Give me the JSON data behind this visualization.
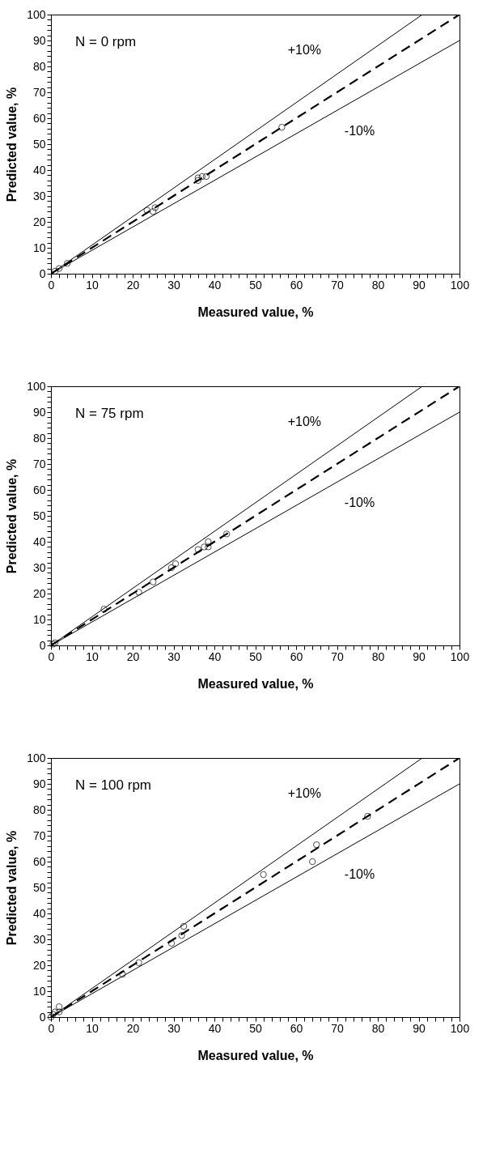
{
  "chart_data": [
    {
      "type": "scatter",
      "xlabel": "Measured value, %",
      "ylabel": "Predicted value, %",
      "annotations": [
        "N = 0 rpm"
      ],
      "xlim": [
        0,
        100
      ],
      "ylim": [
        0,
        100
      ],
      "xticks": [
        0,
        {
          "value": 2,
          "label": null
        },
        {
          "value": 4,
          "label": null
        },
        {
          "value": 6,
          "label": null
        },
        {
          "value": 8,
          "label": null
        },
        10,
        {
          "value": 12,
          "label": null
        },
        {
          "value": 14,
          "label": null
        },
        {
          "value": 16,
          "label": null
        },
        {
          "value": 18,
          "label": null
        },
        20,
        {
          "value": 22,
          "label": null
        },
        {
          "value": 24,
          "label": null
        },
        {
          "value": 26,
          "label": null
        },
        {
          "value": 28,
          "label": null
        },
        30,
        {
          "value": 32,
          "label": null
        },
        {
          "value": 34,
          "label": null
        },
        {
          "value": 36,
          "label": null
        },
        {
          "value": 38,
          "label": null
        },
        40,
        {
          "value": 42,
          "label": null
        },
        {
          "value": 44,
          "label": null
        },
        {
          "value": 46,
          "label": null
        },
        {
          "value": 48,
          "label": null
        },
        50,
        {
          "value": 52,
          "label": null
        },
        {
          "value": 54,
          "label": null
        },
        {
          "value": 56,
          "label": null
        },
        {
          "value": 58,
          "label": null
        },
        60,
        {
          "value": 62,
          "label": null
        },
        {
          "value": 64,
          "label": null
        },
        {
          "value": 66,
          "label": null
        },
        {
          "value": 68,
          "label": null
        },
        70,
        {
          "value": 72,
          "label": null
        },
        {
          "value": 74,
          "label": null
        },
        {
          "value": 76,
          "label": null
        },
        {
          "value": 78,
          "label": null
        },
        80,
        {
          "value": 82,
          "label": null
        },
        {
          "value": 84,
          "label": null
        },
        {
          "value": 86,
          "label": null
        },
        {
          "value": 88,
          "label": null
        },
        90,
        {
          "value": 92,
          "label": null
        },
        {
          "value": 94,
          "label": null
        },
        {
          "value": 96,
          "label": null
        },
        {
          "value": 98,
          "label": null
        },
        100
      ],
      "yticks": [
        0,
        {
          "value": 2,
          "label": null
        },
        {
          "value": 4,
          "label": null
        },
        {
          "value": 6,
          "label": null
        },
        {
          "value": 8,
          "label": null
        },
        10,
        {
          "value": 12,
          "label": null
        },
        {
          "value": 14,
          "label": null
        },
        {
          "value": 16,
          "label": null
        },
        {
          "value": 18,
          "label": null
        },
        20,
        {
          "value": 22,
          "label": null
        },
        {
          "value": 24,
          "label": null
        },
        {
          "value": 26,
          "label": null
        },
        {
          "value": 28,
          "label": null
        },
        30,
        {
          "value": 32,
          "label": null
        },
        {
          "value": 34,
          "label": null
        },
        {
          "value": 36,
          "label": null
        },
        {
          "value": 38,
          "label": null
        },
        40,
        {
          "value": 42,
          "label": null
        },
        {
          "value": 44,
          "label": null
        },
        {
          "value": 46,
          "label": null
        },
        {
          "value": 48,
          "label": null
        },
        50,
        {
          "value": 52,
          "label": null
        },
        {
          "value": 54,
          "label": null
        },
        {
          "value": 56,
          "label": null
        },
        {
          "value": 58,
          "label": null
        },
        60,
        {
          "value": 62,
          "label": null
        },
        {
          "value": 64,
          "label": null
        },
        {
          "value": 66,
          "label": null
        },
        {
          "value": 68,
          "label": null
        },
        70,
        {
          "value": 72,
          "label": null
        },
        {
          "value": 74,
          "label": null
        },
        {
          "value": 76,
          "label": null
        },
        {
          "value": 78,
          "label": null
        },
        80,
        {
          "value": 82,
          "label": null
        },
        {
          "value": 84,
          "label": null
        },
        {
          "value": 86,
          "label": null
        },
        {
          "value": 88,
          "label": null
        },
        90,
        {
          "value": 92,
          "label": null
        },
        {
          "value": 94,
          "label": null
        },
        {
          "value": 96,
          "label": null
        },
        {
          "value": 98,
          "label": null
        },
        100
      ],
      "series": [
        {
          "type": "line",
          "name": "+10%",
          "color": "#000000",
          "line_style": "solid",
          "x": [
            0,
            90.9
          ],
          "values": [
            0,
            100
          ]
        },
        {
          "type": "line",
          "name": "-10%",
          "color": "#000000",
          "line_style": "solid",
          "x": [
            0,
            100
          ],
          "values": [
            0,
            90
          ]
        },
        {
          "type": "line",
          "color": "#000000",
          "line_style": "dashed",
          "x": [
            0,
            100
          ],
          "values": [
            0,
            100
          ]
        },
        {
          "type": "scatter",
          "color": "#000000",
          "marker": "circle",
          "x": [
            1,
            2,
            4,
            23.5,
            25,
            25.5,
            36,
            36,
            37,
            38,
            56.5
          ],
          "values": [
            1,
            2,
            4,
            24.5,
            24,
            25.5,
            37,
            36,
            37.5,
            37.5,
            56.5
          ]
        }
      ]
    },
    {
      "type": "scatter",
      "xlabel": "Measured value, %",
      "ylabel": "Predicted value, %",
      "annotations": [
        "N = 75 rpm"
      ],
      "xlim": [
        0,
        100
      ],
      "ylim": [
        0,
        100
      ],
      "xticks": [
        0,
        {
          "value": 2,
          "label": null
        },
        {
          "value": 4,
          "label": null
        },
        {
          "value": 6,
          "label": null
        },
        {
          "value": 8,
          "label": null
        },
        10,
        {
          "value": 12,
          "label": null
        },
        {
          "value": 14,
          "label": null
        },
        {
          "value": 16,
          "label": null
        },
        {
          "value": 18,
          "label": null
        },
        20,
        {
          "value": 22,
          "label": null
        },
        {
          "value": 24,
          "label": null
        },
        {
          "value": 26,
          "label": null
        },
        {
          "value": 28,
          "label": null
        },
        30,
        {
          "value": 32,
          "label": null
        },
        {
          "value": 34,
          "label": null
        },
        {
          "value": 36,
          "label": null
        },
        {
          "value": 38,
          "label": null
        },
        40,
        {
          "value": 42,
          "label": null
        },
        {
          "value": 44,
          "label": null
        },
        {
          "value": 46,
          "label": null
        },
        {
          "value": 48,
          "label": null
        },
        50,
        {
          "value": 52,
          "label": null
        },
        {
          "value": 54,
          "label": null
        },
        {
          "value": 56,
          "label": null
        },
        {
          "value": 58,
          "label": null
        },
        60,
        {
          "value": 62,
          "label": null
        },
        {
          "value": 64,
          "label": null
        },
        {
          "value": 66,
          "label": null
        },
        {
          "value": 68,
          "label": null
        },
        70,
        {
          "value": 72,
          "label": null
        },
        {
          "value": 74,
          "label": null
        },
        {
          "value": 76,
          "label": null
        },
        {
          "value": 78,
          "label": null
        },
        80,
        {
          "value": 82,
          "label": null
        },
        {
          "value": 84,
          "label": null
        },
        {
          "value": 86,
          "label": null
        },
        {
          "value": 88,
          "label": null
        },
        90,
        {
          "value": 92,
          "label": null
        },
        {
          "value": 94,
          "label": null
        },
        {
          "value": 96,
          "label": null
        },
        {
          "value": 98,
          "label": null
        },
        100
      ],
      "yticks": [
        0,
        {
          "value": 2,
          "label": null
        },
        {
          "value": 4,
          "label": null
        },
        {
          "value": 6,
          "label": null
        },
        {
          "value": 8,
          "label": null
        },
        10,
        {
          "value": 12,
          "label": null
        },
        {
          "value": 14,
          "label": null
        },
        {
          "value": 16,
          "label": null
        },
        {
          "value": 18,
          "label": null
        },
        20,
        {
          "value": 22,
          "label": null
        },
        {
          "value": 24,
          "label": null
        },
        {
          "value": 26,
          "label": null
        },
        {
          "value": 28,
          "label": null
        },
        30,
        {
          "value": 32,
          "label": null
        },
        {
          "value": 34,
          "label": null
        },
        {
          "value": 36,
          "label": null
        },
        {
          "value": 38,
          "label": null
        },
        40,
        {
          "value": 42,
          "label": null
        },
        {
          "value": 44,
          "label": null
        },
        {
          "value": 46,
          "label": null
        },
        {
          "value": 48,
          "label": null
        },
        50,
        {
          "value": 52,
          "label": null
        },
        {
          "value": 54,
          "label": null
        },
        {
          "value": 56,
          "label": null
        },
        {
          "value": 58,
          "label": null
        },
        60,
        {
          "value": 62,
          "label": null
        },
        {
          "value": 64,
          "label": null
        },
        {
          "value": 66,
          "label": null
        },
        {
          "value": 68,
          "label": null
        },
        70,
        {
          "value": 72,
          "label": null
        },
        {
          "value": 74,
          "label": null
        },
        {
          "value": 76,
          "label": null
        },
        {
          "value": 78,
          "label": null
        },
        80,
        {
          "value": 82,
          "label": null
        },
        {
          "value": 84,
          "label": null
        },
        {
          "value": 86,
          "label": null
        },
        {
          "value": 88,
          "label": null
        },
        90,
        {
          "value": 92,
          "label": null
        },
        {
          "value": 94,
          "label": null
        },
        {
          "value": 96,
          "label": null
        },
        {
          "value": 98,
          "label": null
        },
        100
      ],
      "series": [
        {
          "type": "line",
          "name": "+10%",
          "color": "#000000",
          "line_style": "solid",
          "x": [
            0,
            90.9
          ],
          "values": [
            0,
            100
          ]
        },
        {
          "type": "line",
          "name": "-10%",
          "color": "#000000",
          "line_style": "solid",
          "x": [
            0,
            100
          ],
          "values": [
            0,
            90
          ]
        },
        {
          "type": "line",
          "color": "#000000",
          "line_style": "dashed",
          "x": [
            0,
            100
          ],
          "values": [
            0,
            100
          ]
        },
        {
          "type": "scatter",
          "color": "#000000",
          "marker": "circle",
          "x": [
            0.5,
            1,
            13,
            21.5,
            25,
            29.5,
            30.5,
            36,
            37.5,
            38.5,
            38.5,
            43
          ],
          "values": [
            0.5,
            1,
            14,
            20.5,
            24.5,
            30,
            31.5,
            37,
            38,
            40,
            38,
            43
          ]
        }
      ]
    },
    {
      "type": "scatter",
      "xlabel": "Measured value, %",
      "ylabel": "Predicted value, %",
      "annotations": [
        "N = 100 rpm"
      ],
      "xlim": [
        0,
        100
      ],
      "ylim": [
        0,
        100
      ],
      "xticks": [
        0,
        {
          "value": 2,
          "label": null
        },
        {
          "value": 4,
          "label": null
        },
        {
          "value": 6,
          "label": null
        },
        {
          "value": 8,
          "label": null
        },
        10,
        {
          "value": 12,
          "label": null
        },
        {
          "value": 14,
          "label": null
        },
        {
          "value": 16,
          "label": null
        },
        {
          "value": 18,
          "label": null
        },
        20,
        {
          "value": 22,
          "label": null
        },
        {
          "value": 24,
          "label": null
        },
        {
          "value": 26,
          "label": null
        },
        {
          "value": 28,
          "label": null
        },
        30,
        {
          "value": 32,
          "label": null
        },
        {
          "value": 34,
          "label": null
        },
        {
          "value": 36,
          "label": null
        },
        {
          "value": 38,
          "label": null
        },
        40,
        {
          "value": 42,
          "label": null
        },
        {
          "value": 44,
          "label": null
        },
        {
          "value": 46,
          "label": null
        },
        {
          "value": 48,
          "label": null
        },
        50,
        {
          "value": 52,
          "label": null
        },
        {
          "value": 54,
          "label": null
        },
        {
          "value": 56,
          "label": null
        },
        {
          "value": 58,
          "label": null
        },
        60,
        {
          "value": 62,
          "label": null
        },
        {
          "value": 64,
          "label": null
        },
        {
          "value": 66,
          "label": null
        },
        {
          "value": 68,
          "label": null
        },
        70,
        {
          "value": 72,
          "label": null
        },
        {
          "value": 74,
          "label": null
        },
        {
          "value": 76,
          "label": null
        },
        {
          "value": 78,
          "label": null
        },
        80,
        {
          "value": 82,
          "label": null
        },
        {
          "value": 84,
          "label": null
        },
        {
          "value": 86,
          "label": null
        },
        {
          "value": 88,
          "label": null
        },
        90,
        {
          "value": 92,
          "label": null
        },
        {
          "value": 94,
          "label": null
        },
        {
          "value": 96,
          "label": null
        },
        {
          "value": 98,
          "label": null
        },
        100
      ],
      "yticks": [
        0,
        {
          "value": 2,
          "label": null
        },
        {
          "value": 4,
          "label": null
        },
        {
          "value": 6,
          "label": null
        },
        {
          "value": 8,
          "label": null
        },
        10,
        {
          "value": 12,
          "label": null
        },
        {
          "value": 14,
          "label": null
        },
        {
          "value": 16,
          "label": null
        },
        {
          "value": 18,
          "label": null
        },
        20,
        {
          "value": 22,
          "label": null
        },
        {
          "value": 24,
          "label": null
        },
        {
          "value": 26,
          "label": null
        },
        {
          "value": 28,
          "label": null
        },
        30,
        {
          "value": 32,
          "label": null
        },
        {
          "value": 34,
          "label": null
        },
        {
          "value": 36,
          "label": null
        },
        {
          "value": 38,
          "label": null
        },
        40,
        {
          "value": 42,
          "label": null
        },
        {
          "value": 44,
          "label": null
        },
        {
          "value": 46,
          "label": null
        },
        {
          "value": 48,
          "label": null
        },
        50,
        {
          "value": 52,
          "label": null
        },
        {
          "value": 54,
          "label": null
        },
        {
          "value": 56,
          "label": null
        },
        {
          "value": 58,
          "label": null
        },
        60,
        {
          "value": 62,
          "label": null
        },
        {
          "value": 64,
          "label": null
        },
        {
          "value": 66,
          "label": null
        },
        {
          "value": 68,
          "label": null
        },
        70,
        {
          "value": 72,
          "label": null
        },
        {
          "value": 74,
          "label": null
        },
        {
          "value": 76,
          "label": null
        },
        {
          "value": 78,
          "label": null
        },
        80,
        {
          "value": 82,
          "label": null
        },
        {
          "value": 84,
          "label": null
        },
        {
          "value": 86,
          "label": null
        },
        {
          "value": 88,
          "label": null
        },
        90,
        {
          "value": 92,
          "label": null
        },
        {
          "value": 94,
          "label": null
        },
        {
          "value": 96,
          "label": null
        },
        {
          "value": 98,
          "label": null
        },
        100
      ],
      "series": [
        {
          "type": "line",
          "name": "+10%",
          "color": "#000000",
          "line_style": "solid",
          "x": [
            0,
            90.9
          ],
          "values": [
            0,
            100
          ]
        },
        {
          "type": "line",
          "name": "-10%",
          "color": "#000000",
          "line_style": "solid",
          "x": [
            0,
            100
          ],
          "values": [
            0,
            90
          ]
        },
        {
          "type": "line",
          "color": "#000000",
          "line_style": "dashed",
          "x": [
            0,
            100
          ],
          "values": [
            0,
            100
          ]
        },
        {
          "type": "scatter",
          "color": "#000000",
          "marker": "circle",
          "x": [
            0,
            0.5,
            1,
            2,
            2,
            17.5,
            21.5,
            29.5,
            32,
            32.5,
            52,
            64,
            65,
            77.5
          ],
          "values": [
            0,
            1,
            2,
            2,
            4,
            16.5,
            21,
            28.5,
            31.5,
            35,
            55,
            60,
            66.5,
            77.5
          ]
        }
      ]
    }
  ]
}
